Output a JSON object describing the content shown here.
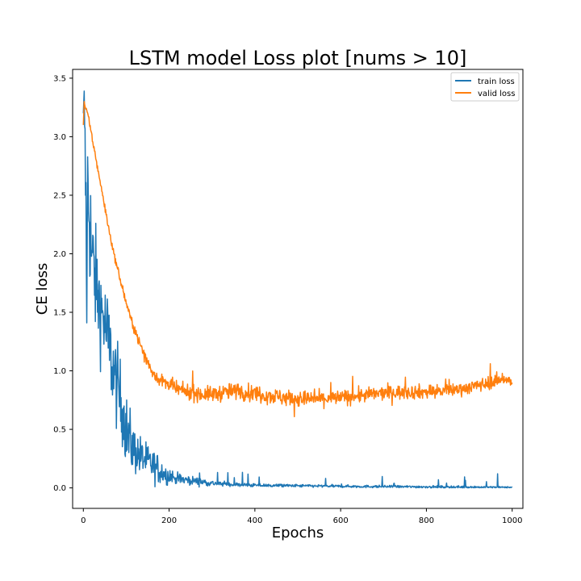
{
  "chart_data": {
    "type": "line",
    "title": "LSTM model Loss plot [nums > 10]",
    "xlabel": "Epochs",
    "ylabel": "CE loss",
    "xlim": [
      -25,
      1025
    ],
    "ylim": [
      -0.175,
      3.575
    ],
    "x_ticks": [
      0,
      200,
      400,
      600,
      800,
      1000
    ],
    "x_tick_labels": [
      "0",
      "200",
      "400",
      "600",
      "800",
      "1000"
    ],
    "y_ticks": [
      0.0,
      0.5,
      1.0,
      1.5,
      2.0,
      2.5,
      3.0,
      3.5
    ],
    "y_tick_labels": [
      "0.0",
      "0.5",
      "1.0",
      "1.5",
      "2.0",
      "2.5",
      "3.0",
      "3.5"
    ],
    "grid": false,
    "legend_position": "top-right",
    "x_range": [
      0,
      1000
    ],
    "series": [
      {
        "name": "train loss",
        "color": "#1f77b4",
        "x": [
          0,
          2,
          4,
          6,
          8,
          10,
          15,
          20,
          25,
          30,
          40,
          50,
          60,
          70,
          80,
          90,
          100,
          110,
          120,
          130,
          140,
          150,
          160,
          170,
          180,
          190,
          200,
          220,
          240,
          260,
          280,
          300,
          320,
          340,
          360,
          380,
          400,
          450,
          500,
          550,
          600,
          650,
          700,
          750,
          800,
          850,
          900,
          950,
          1000
        ],
        "y": [
          3.2,
          3.39,
          2.85,
          2.4,
          1.41,
          2.6,
          2.3,
          1.95,
          1.85,
          1.7,
          1.55,
          1.4,
          1.2,
          1.0,
          0.85,
          0.7,
          0.5,
          0.38,
          0.32,
          0.28,
          0.25,
          0.22,
          0.2,
          0.17,
          0.15,
          0.12,
          0.1,
          0.08,
          0.07,
          0.06,
          0.05,
          0.04,
          0.035,
          0.03,
          0.027,
          0.025,
          0.022,
          0.02,
          0.018,
          0.016,
          0.014,
          0.012,
          0.011,
          0.01,
          0.009,
          0.008,
          0.007,
          0.006,
          0.005
        ],
        "noise": [
          0.0,
          0.0,
          0.35,
          0.55,
          0.0,
          0.6,
          0.6,
          0.55,
          0.5,
          0.45,
          0.42,
          0.4,
          0.4,
          0.38,
          0.35,
          0.32,
          0.3,
          0.26,
          0.2,
          0.18,
          0.16,
          0.15,
          0.14,
          0.13,
          0.12,
          0.09,
          0.07,
          0.05,
          0.04,
          0.035,
          0.03,
          0.025,
          0.02,
          0.018,
          0.016,
          0.015,
          0.015,
          0.013,
          0.012,
          0.012,
          0.011,
          0.011,
          0.011,
          0.01,
          0.01,
          0.01,
          0.01,
          0.008,
          0.005
        ]
      },
      {
        "name": "valid loss",
        "color": "#ff7f0e",
        "x": [
          0,
          2,
          5,
          10,
          20,
          30,
          40,
          50,
          60,
          70,
          80,
          90,
          100,
          110,
          120,
          130,
          140,
          150,
          160,
          170,
          180,
          190,
          200,
          220,
          240,
          260,
          280,
          300,
          320,
          340,
          360,
          380,
          400,
          450,
          500,
          550,
          600,
          650,
          700,
          750,
          800,
          850,
          900,
          950,
          980,
          1000
        ],
        "y": [
          3.1,
          3.3,
          3.24,
          3.2,
          3.0,
          2.8,
          2.6,
          2.4,
          2.2,
          2.02,
          1.87,
          1.72,
          1.58,
          1.45,
          1.35,
          1.25,
          1.15,
          1.07,
          1.0,
          0.95,
          0.92,
          0.9,
          0.88,
          0.84,
          0.82,
          0.81,
          0.8,
          0.8,
          0.81,
          0.82,
          0.83,
          0.82,
          0.81,
          0.78,
          0.76,
          0.76,
          0.77,
          0.79,
          0.81,
          0.82,
          0.82,
          0.83,
          0.86,
          0.9,
          0.94,
          0.9
        ],
        "noise": [
          0.0,
          0.0,
          0.02,
          0.02,
          0.03,
          0.03,
          0.03,
          0.03,
          0.03,
          0.03,
          0.03,
          0.035,
          0.035,
          0.035,
          0.04,
          0.04,
          0.045,
          0.05,
          0.05,
          0.05,
          0.055,
          0.055,
          0.06,
          0.06,
          0.065,
          0.065,
          0.065,
          0.065,
          0.07,
          0.07,
          0.07,
          0.07,
          0.07,
          0.07,
          0.07,
          0.065,
          0.065,
          0.06,
          0.06,
          0.06,
          0.06,
          0.055,
          0.055,
          0.055,
          0.05,
          0.05
        ]
      }
    ]
  }
}
